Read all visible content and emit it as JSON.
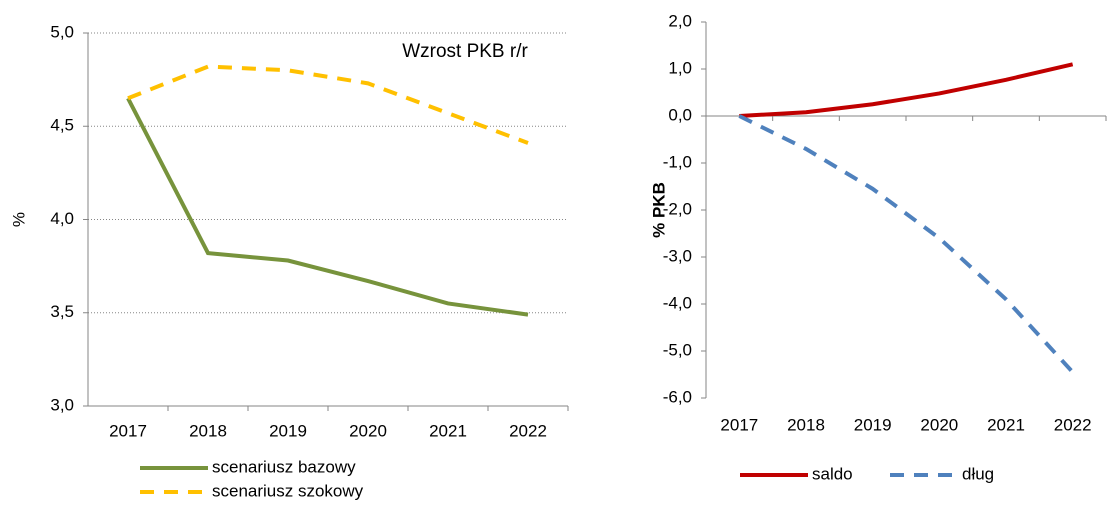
{
  "chart_data": [
    {
      "type": "line",
      "annotation": "Wzrost PKB r/r",
      "y_label": "%",
      "categories": [
        "2017",
        "2018",
        "2019",
        "2020",
        "2021",
        "2022"
      ],
      "series": [
        {
          "name": "scenariusz bazowy",
          "color": "#77933c",
          "style": "solid",
          "values": [
            4.65,
            3.82,
            3.78,
            3.67,
            3.55,
            3.49
          ]
        },
        {
          "name": "scenariusz szokowy",
          "color": "#ffc000",
          "style": "dashed",
          "values": [
            4.65,
            4.82,
            4.8,
            4.73,
            4.57,
            4.41
          ]
        }
      ],
      "ylim": [
        3.0,
        5.0
      ],
      "yticks": [
        {
          "value": 3.0,
          "label": "3,0"
        },
        {
          "value": 3.5,
          "label": "3,5"
        },
        {
          "value": 4.0,
          "label": "4,0"
        },
        {
          "value": 4.5,
          "label": "4,5"
        },
        {
          "value": 5.0,
          "label": "5,0"
        }
      ],
      "grid": true,
      "legend": "bottom"
    },
    {
      "type": "line",
      "y_label": "% PKB",
      "categories": [
        "2017",
        "2018",
        "2019",
        "2020",
        "2021",
        "2022"
      ],
      "series": [
        {
          "name": "saldo",
          "color": "#c00000",
          "style": "solid",
          "values": [
            0,
            0.08,
            0.25,
            0.48,
            0.77,
            1.1
          ]
        },
        {
          "name": "dług",
          "color": "#4f81bd",
          "style": "dashed",
          "values": [
            0,
            -0.7,
            -1.55,
            -2.6,
            -3.9,
            -5.45
          ]
        }
      ],
      "ylim": [
        -6.0,
        2.0
      ],
      "yticks": [
        {
          "value": -6.0,
          "label": "-6,0"
        },
        {
          "value": -5.0,
          "label": "-5,0"
        },
        {
          "value": -4.0,
          "label": "-4,0"
        },
        {
          "value": -3.0,
          "label": "-3,0"
        },
        {
          "value": -2.0,
          "label": "-2,0"
        },
        {
          "value": -1.0,
          "label": "-1,0"
        },
        {
          "value": 0.0,
          "label": "0,0"
        },
        {
          "value": 1.0,
          "label": "1,0"
        },
        {
          "value": 2.0,
          "label": "2,0"
        }
      ],
      "grid": false,
      "legend": "bottom"
    }
  ]
}
